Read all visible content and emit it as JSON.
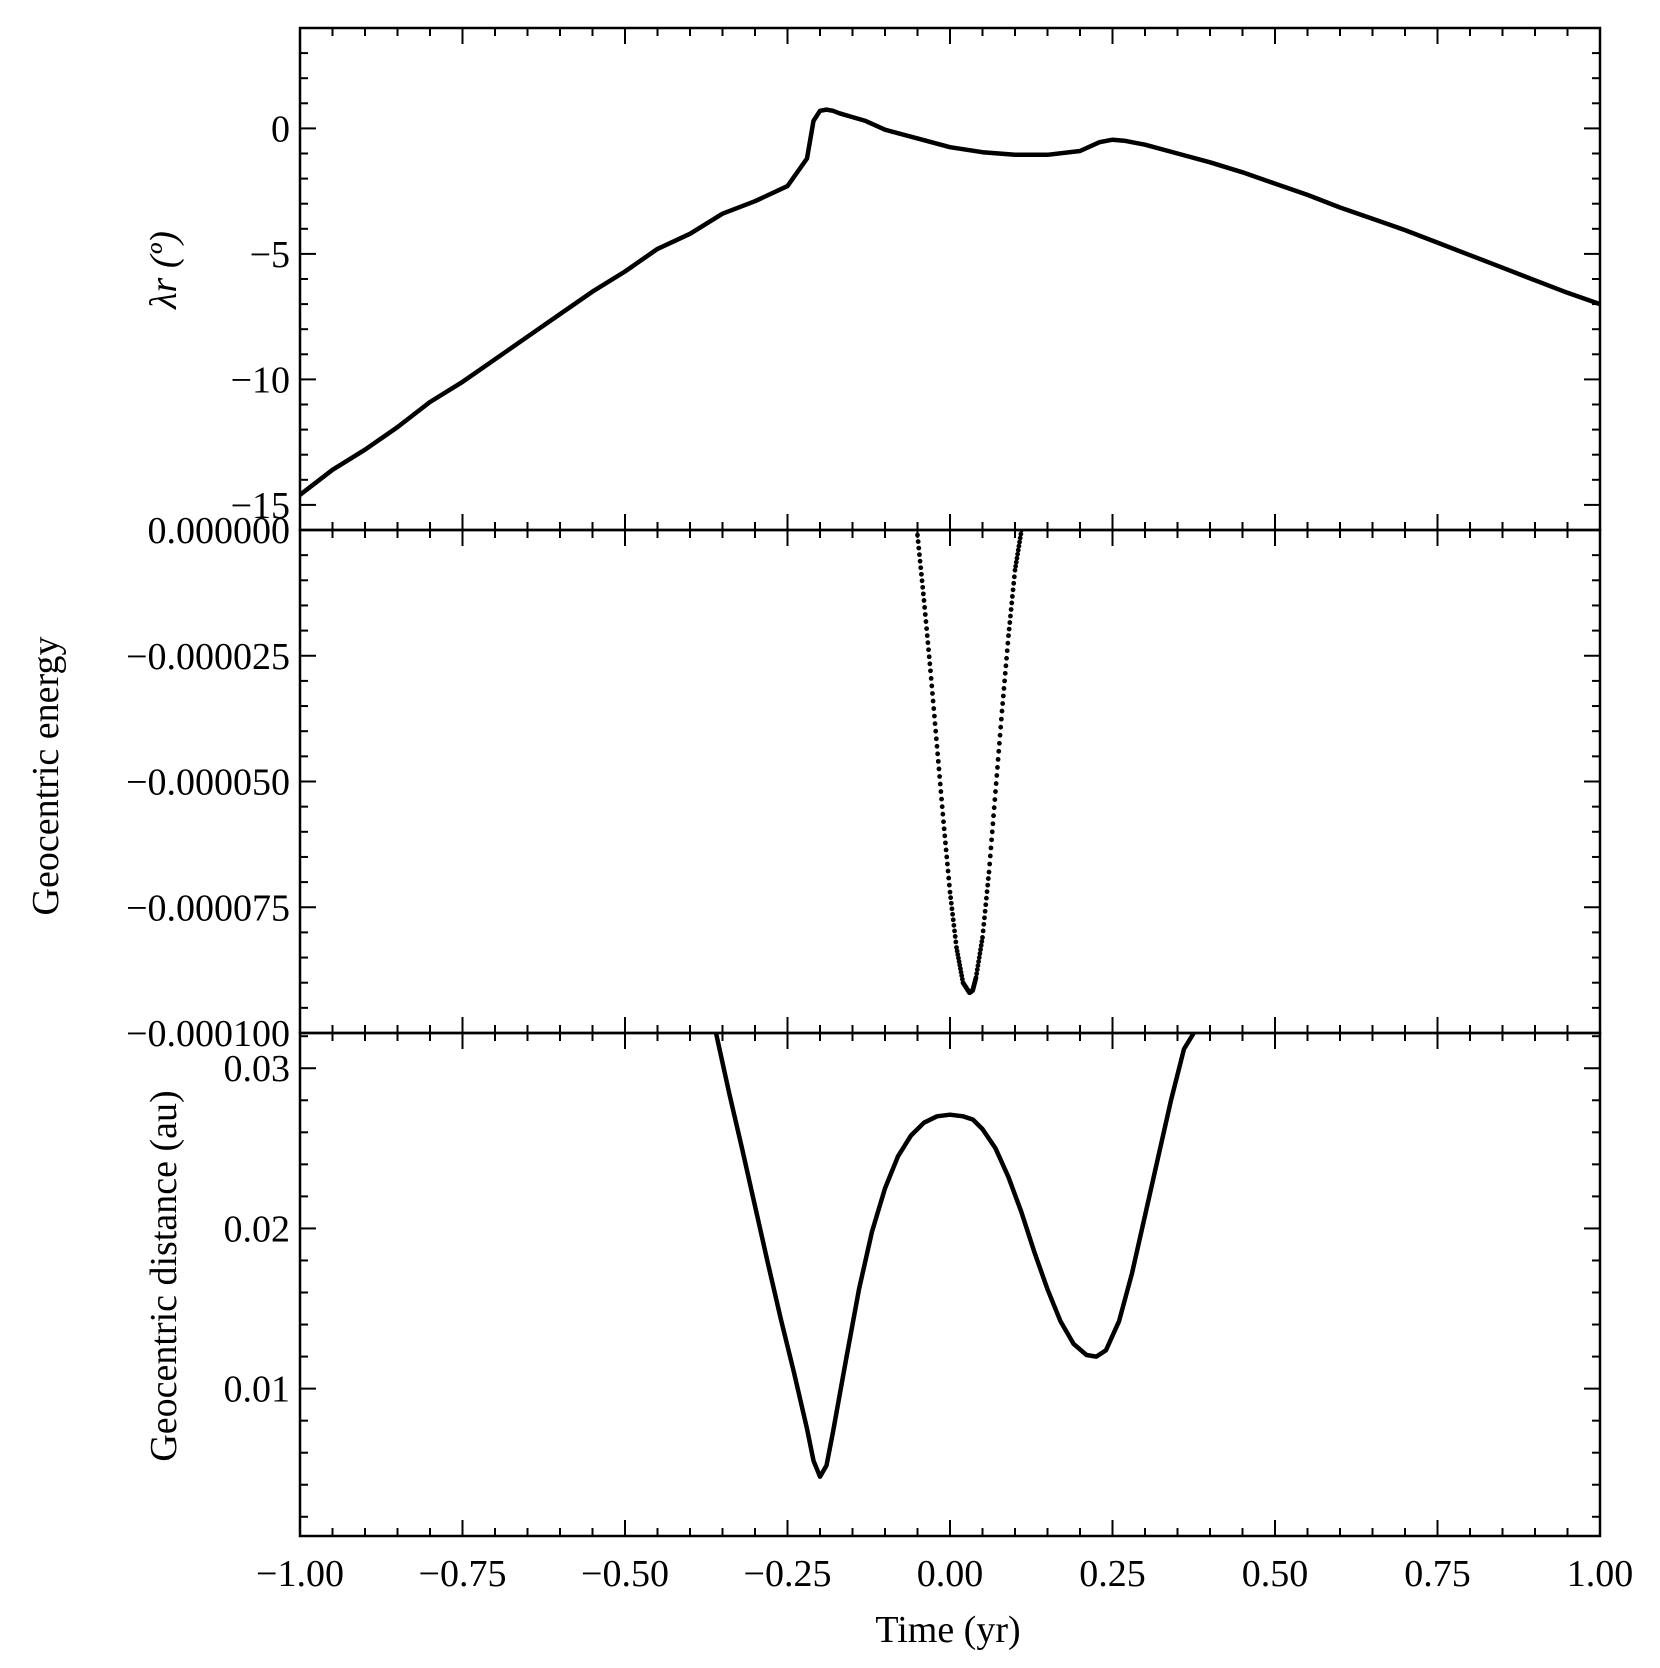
{
  "chart_data": [
    {
      "type": "line",
      "panel": "top",
      "ylabel": "λr (º)",
      "xlim": [
        -1.0,
        1.0
      ],
      "ylim": [
        -16,
        4
      ],
      "yticks": [
        0,
        -5,
        -10,
        -15
      ],
      "ytick_labels": [
        "0",
        "−5",
        "−10",
        "−15"
      ],
      "series": [
        {
          "x": [
            -1.0,
            -0.95,
            -0.9,
            -0.85,
            -0.8,
            -0.75,
            -0.7,
            -0.65,
            -0.6,
            -0.55,
            -0.5,
            -0.45,
            -0.4,
            -0.35,
            -0.3,
            -0.25,
            -0.22,
            -0.21,
            -0.2,
            -0.19,
            -0.18,
            -0.17,
            -0.15,
            -0.13,
            -0.1,
            -0.05,
            0.0,
            0.05,
            0.1,
            0.15,
            0.2,
            0.23,
            0.25,
            0.27,
            0.3,
            0.35,
            0.4,
            0.45,
            0.5,
            0.55,
            0.6,
            0.65,
            0.7,
            0.75,
            0.8,
            0.85,
            0.9,
            0.95,
            1.0
          ],
          "values": [
            -14.6,
            -13.6,
            -12.8,
            -11.9,
            -10.9,
            -10.1,
            -9.2,
            -8.3,
            -7.4,
            -6.5,
            -5.7,
            -4.8,
            -4.2,
            -3.4,
            -2.9,
            -2.3,
            -1.2,
            0.3,
            0.7,
            0.75,
            0.7,
            0.6,
            0.45,
            0.3,
            -0.05,
            -0.4,
            -0.75,
            -0.95,
            -1.05,
            -1.05,
            -0.9,
            -0.55,
            -0.45,
            -0.5,
            -0.65,
            -1.0,
            -1.35,
            -1.75,
            -2.2,
            -2.65,
            -3.15,
            -3.6,
            -4.05,
            -4.55,
            -5.05,
            -5.55,
            -6.05,
            -6.55,
            -7.0
          ]
        }
      ]
    },
    {
      "type": "scatter",
      "panel": "middle",
      "ylabel": "Geocentric energy",
      "xlim": [
        -1.0,
        1.0
      ],
      "ylim": [
        -0.0001,
        0.0
      ],
      "yticks": [
        0.0,
        -2.5e-05,
        -5e-05,
        -7.5e-05,
        -0.0001
      ],
      "ytick_labels": [
        "0.000000",
        "−0.000025",
        "−0.000050",
        "−0.000075",
        "−0.000100"
      ],
      "series": [
        {
          "x": [
            -0.05,
            -0.04,
            -0.03,
            -0.02,
            -0.01,
            0.0,
            0.01,
            0.02,
            0.03,
            0.035,
            0.04,
            0.05,
            0.06,
            0.07,
            0.08,
            0.09,
            0.1,
            0.11
          ],
          "values": [
            -1e-06,
            -1.4e-05,
            -2.8e-05,
            -4.3e-05,
            -5.8e-05,
            -7.2e-05,
            -8.3e-05,
            -9e-05,
            -9.2e-05,
            -9.15e-05,
            -8.9e-05,
            -8.1e-05,
            -6.8e-05,
            -5.2e-05,
            -3.6e-05,
            -2.1e-05,
            -8e-06,
            0.0
          ]
        }
      ]
    },
    {
      "type": "line",
      "panel": "bottom",
      "ylabel": "Geocentric distance (au)",
      "xlabel": "Time (yr)",
      "xlim": [
        -1.0,
        1.0
      ],
      "ylim": [
        0.0008,
        0.0322
      ],
      "yticks": [
        0.03,
        0.02,
        0.01
      ],
      "ytick_labels": [
        "0.03",
        "0.02",
        "0.01"
      ],
      "xticks": [
        -1.0,
        -0.75,
        -0.5,
        -0.25,
        0.0,
        0.25,
        0.5,
        0.75,
        1.0
      ],
      "xtick_labels": [
        "−1.00",
        "−0.75",
        "−0.50",
        "−0.25",
        "0.00",
        "0.25",
        "0.50",
        "0.75",
        "1.00"
      ],
      "series": [
        {
          "x": [
            -0.36,
            -0.34,
            -0.32,
            -0.3,
            -0.28,
            -0.26,
            -0.24,
            -0.22,
            -0.21,
            -0.2,
            -0.19,
            -0.18,
            -0.16,
            -0.14,
            -0.12,
            -0.1,
            -0.08,
            -0.06,
            -0.04,
            -0.02,
            0.0,
            0.02,
            0.035,
            0.05,
            0.07,
            0.09,
            0.11,
            0.13,
            0.15,
            0.17,
            0.19,
            0.21,
            0.225,
            0.24,
            0.26,
            0.28,
            0.3,
            0.32,
            0.34,
            0.36,
            0.375
          ],
          "values": [
            0.0322,
            0.0285,
            0.025,
            0.0214,
            0.0178,
            0.0143,
            0.011,
            0.0075,
            0.0055,
            0.0045,
            0.0052,
            0.0073,
            0.0118,
            0.0162,
            0.0198,
            0.0225,
            0.0245,
            0.0258,
            0.0266,
            0.027,
            0.0271,
            0.027,
            0.0268,
            0.0262,
            0.025,
            0.0232,
            0.021,
            0.0185,
            0.0162,
            0.0142,
            0.0128,
            0.0121,
            0.012,
            0.0124,
            0.0142,
            0.0172,
            0.0208,
            0.0244,
            0.028,
            0.0312,
            0.0322
          ]
        }
      ]
    }
  ]
}
